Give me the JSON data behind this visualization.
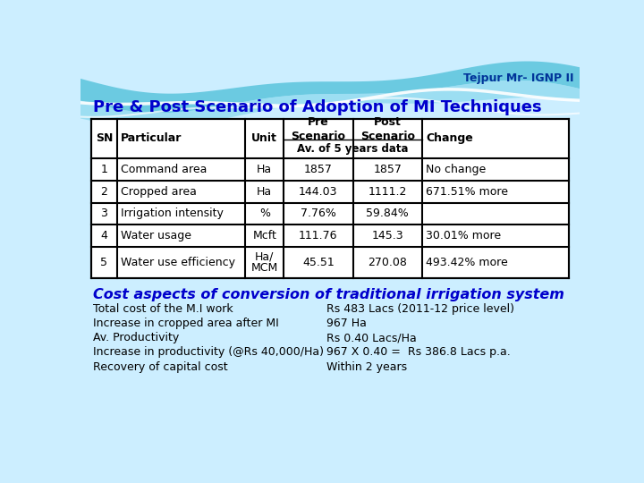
{
  "title": "Pre & Post Scenario of Adoption of MI Techniques",
  "header_label": "Tejpur Mr- IGNP II",
  "subheader": "Av. of 5 years data",
  "rows": [
    [
      "1",
      "Command area",
      "Ha",
      "1857",
      "1857",
      "No change"
    ],
    [
      "2",
      "Cropped area",
      "Ha",
      "144.03",
      "1111.2",
      "671.51% more"
    ],
    [
      "3",
      "Irrigation intensity",
      "%",
      "7.76%",
      "59.84%",
      ""
    ],
    [
      "4",
      "Water usage",
      "Mcft",
      "111.76",
      "145.3",
      "30.01% more"
    ],
    [
      "5",
      "Water use efficiency",
      "Ha/\nMCM",
      "45.51",
      "270.08",
      "493.42% more"
    ]
  ],
  "cost_title": "Cost aspects of conversion of traditional irrigation system",
  "cost_items_left": [
    "Total cost of the M.I work",
    "Increase in cropped area after MI",
    "Av. Productivity",
    "Increase in productivity (@Rs 40,000/Ha)",
    "Recovery of capital cost"
  ],
  "cost_items_right": [
    "Rs 483 Lacs (2011-12 price level)",
    "967 Ha",
    "Rs 0.40 Lacs/Ha",
    "967 X 0.40 =  Rs 386.8 Lacs p.a.",
    "Within 2 years"
  ],
  "bg_color": "#cceeff",
  "title_color": "#0000cc",
  "cost_title_color": "#0000cc",
  "header_color": "#003399",
  "body_text_color": "#000000"
}
